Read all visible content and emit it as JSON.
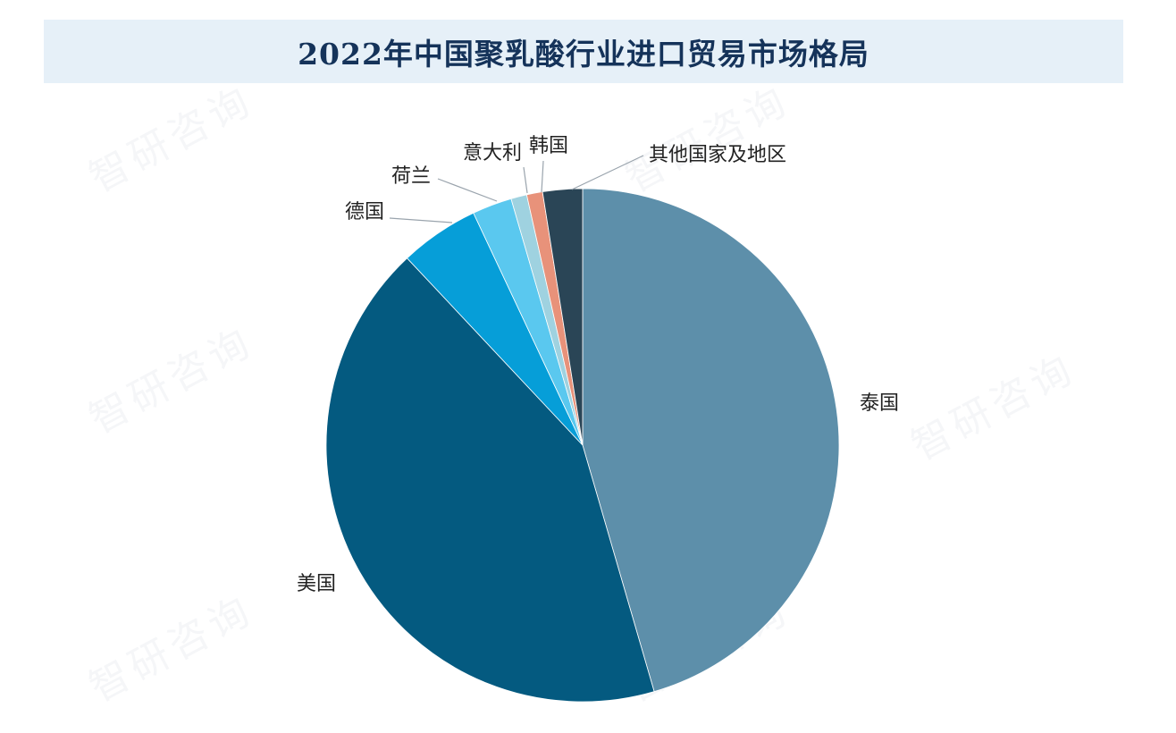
{
  "chart_data": {
    "type": "pie",
    "title": "2022年中国聚乳酸行业进口贸易市场格局",
    "categories": [
      "泰国",
      "美国",
      "德国",
      "荷兰",
      "意大利",
      "韩国",
      "其他国家及地区"
    ],
    "values": [
      45.5,
      42.5,
      5.0,
      2.5,
      1.0,
      1.0,
      2.5
    ],
    "unit": "%",
    "start_angle_deg": 0,
    "direction": "clockwise",
    "colors": [
      "#5d8faa",
      "#045a80",
      "#069ed8",
      "#5ac8ef",
      "#9fd2e0",
      "#e8927a",
      "#2a4556"
    ],
    "label_placement": "outside",
    "legend": "none"
  },
  "watermark": {
    "text": "智研咨询"
  }
}
